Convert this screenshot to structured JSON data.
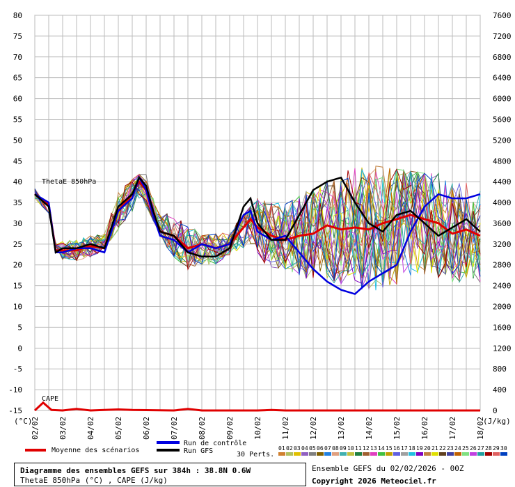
{
  "header": {
    "title": "Diagramme des ensembles GEFS sur 384h : 38.8N 0.6W",
    "subtitle": "ThetaE 850hPa (°C) , CAPE (J/kg)"
  },
  "footer": {
    "run": "Ensemble GEFS du 02/02/2026 - 00Z",
    "copyright": "Copyright 2026 Meteociel.fr"
  },
  "legend": {
    "mean": "Moyenne des scénarios",
    "control": "Run de contrôle",
    "gfs": "Run GFS",
    "perts_label": "30 Perts.",
    "perts": [
      "01",
      "02",
      "03",
      "04",
      "05",
      "06",
      "07",
      "08",
      "09",
      "10",
      "11",
      "12",
      "13",
      "14",
      "15",
      "16",
      "17",
      "18",
      "19",
      "20",
      "21",
      "22",
      "23",
      "24",
      "25",
      "26",
      "27",
      "28",
      "29",
      "30"
    ],
    "pert_colors": [
      "#d08030",
      "#b0c060",
      "#e0c000",
      "#9060c0",
      "#808080",
      "#806000",
      "#2080e0",
      "#e0a080",
      "#40b0b0",
      "#c0c040",
      "#208040",
      "#a06030",
      "#e040c0",
      "#40c040",
      "#c0a000",
      "#6060e0",
      "#a0a0a0",
      "#20c0e0",
      "#8000c0",
      "#c08040",
      "#e0e000",
      "#604020",
      "#4040a0",
      "#c06000",
      "#80e080",
      "#c040e0",
      "#20a0a0",
      "#a00000",
      "#e06060",
      "#0040c0"
    ]
  },
  "chart_data": {
    "type": "line",
    "title": "",
    "xlabel": "",
    "ylabel_left": "(°C)",
    "ylabel_right": "(J/kg)",
    "annotation_theta": "ThetaE 850hPa",
    "annotation_cape": "CAPE",
    "x_ticks": [
      "02/02",
      "03/02",
      "04/02",
      "05/02",
      "06/02",
      "07/02",
      "08/02",
      "09/02",
      "10/02",
      "11/02",
      "12/02",
      "13/02",
      "14/02",
      "15/02",
      "16/02",
      "17/02",
      "18/02"
    ],
    "y_left_ticks": [
      80,
      75,
      70,
      65,
      60,
      55,
      50,
      45,
      40,
      35,
      30,
      25,
      20,
      15,
      10,
      5,
      0,
      -5,
      -10,
      -15
    ],
    "y_right_ticks": [
      7600,
      7200,
      6800,
      6400,
      6000,
      5600,
      5200,
      4800,
      4400,
      4000,
      3600,
      3200,
      2800,
      2400,
      2000,
      1600,
      1200,
      800,
      400,
      0
    ],
    "ylim_left": [
      -15,
      80
    ],
    "ylim_right": [
      0,
      7600
    ],
    "x_range_days": [
      0,
      16
    ],
    "colors": {
      "mean": "#e00000",
      "control": "#0000e0",
      "gfs": "#000000",
      "cape_mean": "#e00000"
    },
    "series": [
      {
        "name": "Moyenne des scénarios",
        "color": "#e00000",
        "values": [
          [
            0,
            37
          ],
          [
            0.5,
            34.5
          ],
          [
            0.75,
            23.5
          ],
          [
            1,
            23.5
          ],
          [
            1.5,
            23.5
          ],
          [
            2,
            24.5
          ],
          [
            2.5,
            24
          ],
          [
            3,
            33
          ],
          [
            3.5,
            37
          ],
          [
            3.75,
            40
          ],
          [
            4,
            38
          ],
          [
            4.25,
            32
          ],
          [
            4.5,
            28
          ],
          [
            5,
            27
          ],
          [
            5.5,
            24
          ],
          [
            6,
            25
          ],
          [
            6.5,
            24
          ],
          [
            7,
            25
          ],
          [
            7.5,
            29
          ],
          [
            7.75,
            31
          ],
          [
            8,
            29
          ],
          [
            8.5,
            27
          ],
          [
            9,
            26
          ],
          [
            9.5,
            27
          ],
          [
            10,
            27.5
          ],
          [
            10.5,
            29.5
          ],
          [
            11,
            28.5
          ],
          [
            11.5,
            29
          ],
          [
            12,
            28.5
          ],
          [
            12.5,
            30
          ],
          [
            13,
            31
          ],
          [
            13.5,
            32
          ],
          [
            14,
            31
          ],
          [
            14.5,
            30
          ],
          [
            15,
            27.5
          ],
          [
            15.5,
            28.5
          ],
          [
            16,
            27
          ]
        ]
      },
      {
        "name": "Run de contrôle",
        "color": "#0000e0",
        "values": [
          [
            0,
            37
          ],
          [
            0.5,
            35
          ],
          [
            0.75,
            23
          ],
          [
            1,
            23
          ],
          [
            1.5,
            24
          ],
          [
            2,
            24
          ],
          [
            2.5,
            23
          ],
          [
            3,
            33
          ],
          [
            3.5,
            36
          ],
          [
            3.75,
            41
          ],
          [
            4,
            38
          ],
          [
            4.25,
            32
          ],
          [
            4.5,
            27
          ],
          [
            5,
            26
          ],
          [
            5.5,
            23
          ],
          [
            6,
            25
          ],
          [
            6.5,
            24
          ],
          [
            7,
            25
          ],
          [
            7.5,
            32
          ],
          [
            7.75,
            33
          ],
          [
            8,
            28
          ],
          [
            8.5,
            26
          ],
          [
            9,
            27
          ],
          [
            9.5,
            23
          ],
          [
            10,
            19
          ],
          [
            10.5,
            16
          ],
          [
            11,
            14
          ],
          [
            11.5,
            13
          ],
          [
            12,
            16
          ],
          [
            12.5,
            18
          ],
          [
            13,
            20
          ],
          [
            13.5,
            28
          ],
          [
            14,
            34
          ],
          [
            14.5,
            37
          ],
          [
            15,
            36
          ],
          [
            15.5,
            36
          ],
          [
            16,
            37
          ]
        ]
      },
      {
        "name": "Run GFS",
        "color": "#000000",
        "values": [
          [
            0,
            37
          ],
          [
            0.5,
            34
          ],
          [
            0.75,
            23
          ],
          [
            1,
            24
          ],
          [
            1.5,
            24
          ],
          [
            2,
            25
          ],
          [
            2.5,
            24
          ],
          [
            3,
            34
          ],
          [
            3.5,
            37
          ],
          [
            3.75,
            41
          ],
          [
            4,
            39
          ],
          [
            4.25,
            33
          ],
          [
            4.5,
            28
          ],
          [
            5,
            27
          ],
          [
            5.5,
            23
          ],
          [
            6,
            22
          ],
          [
            6.5,
            22
          ],
          [
            7,
            24
          ],
          [
            7.5,
            34
          ],
          [
            7.75,
            36
          ],
          [
            8,
            30
          ],
          [
            8.5,
            26
          ],
          [
            9,
            26
          ],
          [
            9.5,
            32
          ],
          [
            10,
            38
          ],
          [
            10.5,
            40
          ],
          [
            11,
            41
          ],
          [
            11.5,
            35
          ],
          [
            12,
            30
          ],
          [
            12.5,
            28
          ],
          [
            13,
            32
          ],
          [
            13.5,
            33
          ],
          [
            14,
            30
          ],
          [
            14.5,
            27
          ],
          [
            15,
            29
          ],
          [
            15.5,
            31
          ],
          [
            16,
            28
          ]
        ]
      }
    ],
    "cape_series": {
      "name": "CAPE mean",
      "values": [
        [
          0,
          0
        ],
        [
          0.3,
          150
        ],
        [
          0.6,
          10
        ],
        [
          1,
          0
        ],
        [
          1.5,
          30
        ],
        [
          2,
          0
        ],
        [
          3,
          20
        ],
        [
          3.5,
          10
        ],
        [
          5,
          0
        ],
        [
          5.5,
          30
        ],
        [
          6,
          0
        ],
        [
          8,
          0
        ],
        [
          8.5,
          10
        ],
        [
          9,
          0
        ],
        [
          10,
          0
        ],
        [
          11,
          0
        ],
        [
          12,
          0
        ],
        [
          13,
          0
        ],
        [
          14,
          0
        ],
        [
          15,
          0
        ],
        [
          16,
          0
        ]
      ]
    },
    "ensemble_spread": {
      "min": [
        [
          0,
          36
        ],
        [
          1,
          21
        ],
        [
          2,
          21
        ],
        [
          3,
          28
        ],
        [
          4,
          34
        ],
        [
          5,
          21
        ],
        [
          6,
          16
        ],
        [
          7,
          22
        ],
        [
          8,
          20
        ],
        [
          9,
          19
        ],
        [
          10,
          16
        ],
        [
          11,
          13
        ],
        [
          12,
          10
        ],
        [
          13,
          8
        ],
        [
          14,
          12
        ],
        [
          15,
          14
        ],
        [
          16,
          15
        ]
      ],
      "max": [
        [
          0,
          39
        ],
        [
          1,
          26
        ],
        [
          2,
          27
        ],
        [
          3,
          38
        ],
        [
          4,
          43
        ],
        [
          5,
          33
        ],
        [
          6,
          27
        ],
        [
          7,
          28
        ],
        [
          8,
          36
        ],
        [
          9,
          39
        ],
        [
          10,
          42
        ],
        [
          11,
          44
        ],
        [
          12,
          44
        ],
        [
          13,
          43
        ],
        [
          14,
          42
        ],
        [
          15,
          42
        ],
        [
          16,
          40
        ]
      ]
    }
  }
}
